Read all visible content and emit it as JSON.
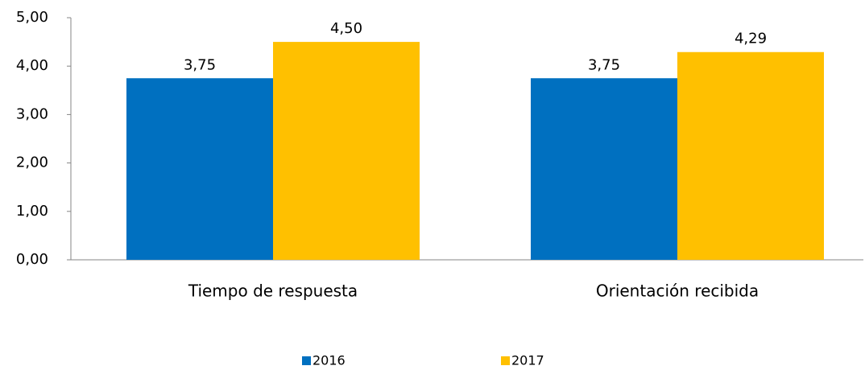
{
  "chart_data": {
    "type": "bar",
    "categories": [
      "Tiempo de respuesta",
      "Orientación recibida"
    ],
    "series": [
      {
        "name": "2016",
        "color": "#0070c0",
        "values": [
          3.75,
          3.75
        ],
        "value_labels": [
          "3,75",
          "3,75"
        ]
      },
      {
        "name": "2017",
        "color": "#ffc000",
        "values": [
          4.5,
          4.29
        ],
        "value_labels": [
          "4,50",
          "4,29"
        ]
      }
    ],
    "ylim": [
      0,
      5
    ],
    "yticks": [
      {
        "value": 0,
        "label": "0,00"
      },
      {
        "value": 1,
        "label": "1,00"
      },
      {
        "value": 2,
        "label": "2,00"
      },
      {
        "value": 3,
        "label": "3,00"
      },
      {
        "value": 4,
        "label": "4,00"
      },
      {
        "value": 5,
        "label": "5,00"
      }
    ],
    "grid": false,
    "legend": "bottom"
  }
}
